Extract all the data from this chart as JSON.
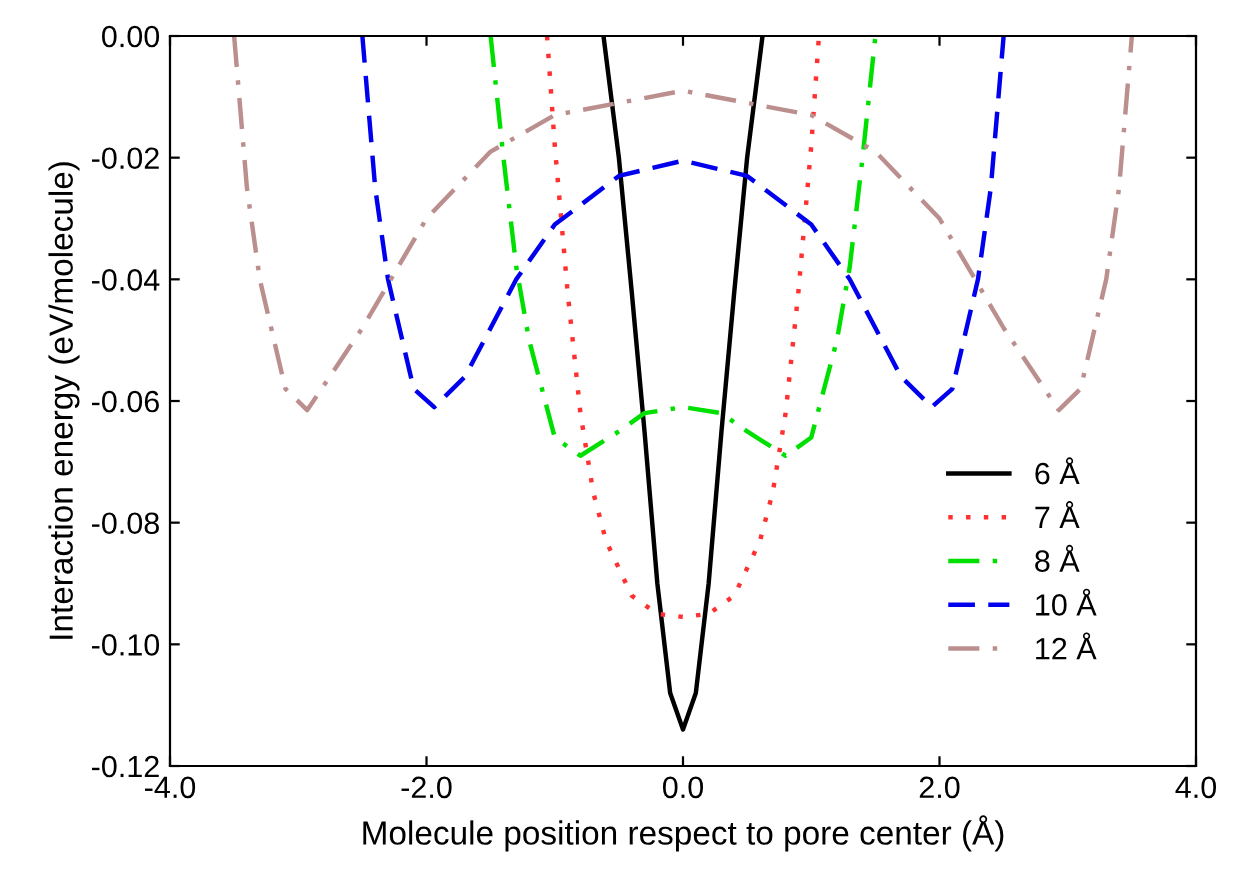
{
  "chart_data": {
    "type": "line",
    "xlabel": "Molecule position respect to pore center (Å)",
    "ylabel": "Interaction energy (eV/molecule)",
    "series": [
      {
        "name": "6 Å",
        "color": "#000000",
        "line_style": "solid",
        "x": [
          -0.62,
          -0.5,
          -0.4,
          -0.3,
          -0.2,
          -0.1,
          0,
          0.1,
          0.2,
          0.3,
          0.4,
          0.5,
          0.62
        ],
        "values": [
          0,
          -0.02,
          -0.042,
          -0.065,
          -0.09,
          -0.108,
          -0.114,
          -0.108,
          -0.09,
          -0.065,
          -0.042,
          -0.02,
          0
        ]
      },
      {
        "name": "7 Å",
        "color": "#ff3030",
        "line_style": "dotted",
        "x": [
          -1.06,
          -1.0,
          -0.9,
          -0.8,
          -0.7,
          -0.6,
          -0.4,
          -0.2,
          0,
          0.2,
          0.4,
          0.6,
          0.7,
          0.8,
          0.9,
          1.0,
          1.06
        ],
        "values": [
          0,
          -0.018,
          -0.042,
          -0.062,
          -0.075,
          -0.083,
          -0.092,
          -0.095,
          -0.0955,
          -0.095,
          -0.092,
          -0.083,
          -0.075,
          -0.062,
          -0.042,
          -0.018,
          0
        ]
      },
      {
        "name": "8 Å",
        "color": "#00e000",
        "line_style": "dashdot",
        "x": [
          -1.5,
          -1.4,
          -1.3,
          -1.2,
          -1.0,
          -0.8,
          -0.5,
          -0.3,
          0,
          0.3,
          0.5,
          0.8,
          1.0,
          1.2,
          1.3,
          1.4,
          1.5
        ],
        "values": [
          0,
          -0.02,
          -0.038,
          -0.05,
          -0.066,
          -0.069,
          -0.065,
          -0.062,
          -0.061,
          -0.062,
          -0.065,
          -0.069,
          -0.066,
          -0.05,
          -0.038,
          -0.02,
          0
        ]
      },
      {
        "name": "10 Å",
        "color": "#0000ee",
        "line_style": "dashed",
        "x": [
          -2.5,
          -2.4,
          -2.3,
          -2.1,
          -1.94,
          -1.7,
          -1.5,
          -1.3,
          -1.0,
          -0.5,
          0,
          0.5,
          1.0,
          1.3,
          1.5,
          1.7,
          1.94,
          2.1,
          2.3,
          2.4,
          2.5
        ],
        "values": [
          0,
          -0.025,
          -0.04,
          -0.058,
          -0.061,
          -0.056,
          -0.048,
          -0.04,
          -0.031,
          -0.023,
          -0.0205,
          -0.023,
          -0.031,
          -0.04,
          -0.048,
          -0.056,
          -0.061,
          -0.058,
          -0.04,
          -0.025,
          0
        ]
      },
      {
        "name": "12 Å",
        "color": "#bc8f8f",
        "line_style": "dashdot",
        "x": [
          -3.5,
          -3.4,
          -3.3,
          -3.1,
          -2.93,
          -2.5,
          -2.0,
          -1.5,
          -1.0,
          0,
          1.0,
          1.5,
          2.0,
          2.5,
          2.93,
          3.1,
          3.3,
          3.4,
          3.5
        ],
        "values": [
          0,
          -0.025,
          -0.04,
          -0.058,
          -0.0615,
          -0.048,
          -0.03,
          -0.019,
          -0.013,
          -0.009,
          -0.013,
          -0.019,
          -0.03,
          -0.048,
          -0.0615,
          -0.058,
          -0.04,
          -0.025,
          0
        ]
      }
    ],
    "xlim": [
      -4,
      4
    ],
    "xticks": [
      {
        "value": -4,
        "label": "-4.0"
      },
      {
        "value": -2,
        "label": "-2.0"
      },
      {
        "value": 0,
        "label": "0.0"
      },
      {
        "value": 2,
        "label": "2.0"
      },
      {
        "value": 4,
        "label": "4.0"
      }
    ],
    "ylim": [
      -0.12,
      0
    ],
    "yticks": [
      {
        "value": -0.12,
        "label": "-0.12"
      },
      {
        "value": -0.1,
        "label": "-0.10"
      },
      {
        "value": -0.08,
        "label": "-0.08"
      },
      {
        "value": -0.06,
        "label": "-0.06"
      },
      {
        "value": -0.04,
        "label": "-0.04"
      },
      {
        "value": -0.02,
        "label": "-0.02"
      },
      {
        "value": 0,
        "label": "0.00"
      }
    ],
    "grid": false,
    "legend": "bottom right"
  }
}
